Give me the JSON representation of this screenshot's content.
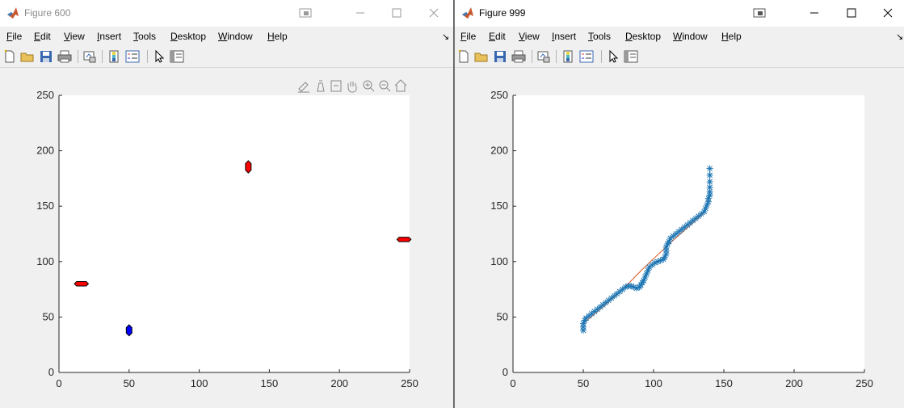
{
  "windows": [
    {
      "id": "left",
      "title": "Figure 600",
      "active": false,
      "menu": [
        {
          "pre": "",
          "ul": "F",
          "post": "ile"
        },
        {
          "pre": "",
          "ul": "E",
          "post": "dit"
        },
        {
          "pre": "",
          "ul": "V",
          "post": "iew"
        },
        {
          "pre": "",
          "ul": "I",
          "post": "nsert"
        },
        {
          "pre": "",
          "ul": "T",
          "post": "ools"
        },
        {
          "pre": "",
          "ul": "D",
          "post": "esktop"
        },
        {
          "pre": "",
          "ul": "W",
          "post": "indow"
        },
        {
          "pre": "",
          "ul": "H",
          "post": "elp"
        }
      ],
      "axes_toolbar_icons": [
        "brush-icon",
        "data-tips-icon",
        "pan-icon",
        "zoom-in-icon",
        "zoom-out-icon",
        "home-icon"
      ]
    },
    {
      "id": "right",
      "title": "Figure 999",
      "active": true,
      "menu": [
        {
          "pre": "",
          "ul": "F",
          "post": "ile"
        },
        {
          "pre": "",
          "ul": "E",
          "post": "dit"
        },
        {
          "pre": "",
          "ul": "V",
          "post": "iew"
        },
        {
          "pre": "",
          "ul": "I",
          "post": "nsert"
        },
        {
          "pre": "",
          "ul": "T",
          "post": "ools"
        },
        {
          "pre": "",
          "ul": "D",
          "post": "esktop"
        },
        {
          "pre": "",
          "ul": "W",
          "post": "indow"
        },
        {
          "pre": "",
          "ul": "H",
          "post": "elp"
        }
      ]
    }
  ],
  "toolbar_icons": [
    "new-figure-icon",
    "open-file-icon",
    "save-icon",
    "print-icon",
    "link-plot-icon",
    "insert-colorbar-icon",
    "insert-legend-icon",
    "edit-plot-icon",
    "property-inspector-icon"
  ],
  "colors": {
    "red_obstacle": "#ff0000",
    "blue_robot": "#0000ff",
    "path": "#1f77b4",
    "direct_line": "#d95319",
    "axes_bg": "#ffffff",
    "figure_bg": "#f0f0f0"
  },
  "chart_data": [
    {
      "type": "scatter",
      "figure": "Figure 600",
      "xlim": [
        0,
        250
      ],
      "ylim": [
        0,
        250
      ],
      "xticks": [
        "0",
        "50",
        "100",
        "150",
        "200",
        "250"
      ],
      "yticks": [
        "0",
        "50",
        "100",
        "150",
        "200",
        "250"
      ],
      "title": "",
      "xlabel": "",
      "ylabel": "",
      "shapes": [
        {
          "kind": "horizontal-hexagon",
          "color": "red",
          "x": [
            11,
            21
          ],
          "y": [
            78,
            82
          ]
        },
        {
          "kind": "vertical-hexagon",
          "color": "blue",
          "x": [
            48,
            52
          ],
          "y": [
            33,
            43
          ]
        },
        {
          "kind": "vertical-hexagon",
          "color": "red",
          "x": [
            133,
            137
          ],
          "y": [
            180,
            191
          ]
        },
        {
          "kind": "horizontal-hexagon",
          "color": "red",
          "x": [
            241,
            251
          ],
          "y": [
            118,
            122
          ]
        }
      ]
    },
    {
      "type": "line",
      "figure": "Figure 999",
      "xlim": [
        0,
        250
      ],
      "ylim": [
        0,
        250
      ],
      "xticks": [
        "0",
        "50",
        "100",
        "150",
        "200",
        "250"
      ],
      "yticks": [
        "0",
        "50",
        "100",
        "150",
        "200",
        "250"
      ],
      "title": "",
      "xlabel": "",
      "ylabel": "",
      "series": [
        {
          "marker": "*",
          "x": [
            50,
            50,
            50,
            51,
            52,
            54,
            56,
            58,
            60,
            62,
            64,
            66,
            68,
            70,
            72,
            74,
            76,
            78,
            80,
            82,
            84,
            86,
            88,
            90,
            91,
            92,
            93,
            94,
            95,
            96,
            97,
            99,
            101,
            103,
            105,
            107,
            108,
            109,
            109,
            109,
            110,
            111,
            112,
            114,
            116,
            118,
            120,
            122,
            124,
            126,
            128,
            130,
            132,
            134,
            136,
            137,
            138,
            139,
            139,
            140,
            140,
            140,
            140,
            140,
            140
          ],
          "y": [
            38,
            41,
            44,
            47,
            49,
            51,
            53,
            55,
            57,
            59,
            61,
            63,
            65,
            67,
            69,
            71,
            73,
            75,
            77,
            78,
            78,
            77,
            76,
            77,
            79,
            81,
            83,
            86,
            89,
            92,
            95,
            97,
            99,
            100,
            101,
            102,
            104,
            107,
            110,
            113,
            116,
            118,
            121,
            123,
            125,
            127,
            129,
            131,
            133,
            135,
            137,
            139,
            141,
            143,
            145,
            148,
            151,
            154,
            157,
            160,
            163,
            167,
            172,
            178,
            184
          ]
        },
        {
          "marker": "none",
          "x": [
            50,
            62,
            72,
            82,
            92,
            102,
            112,
            120,
            128,
            135,
            138,
            140,
            140,
            140
          ],
          "y": [
            44,
            57,
            68,
            80,
            93,
            105,
            117,
            126,
            135,
            143,
            150,
            158,
            170,
            184
          ]
        }
      ]
    }
  ]
}
